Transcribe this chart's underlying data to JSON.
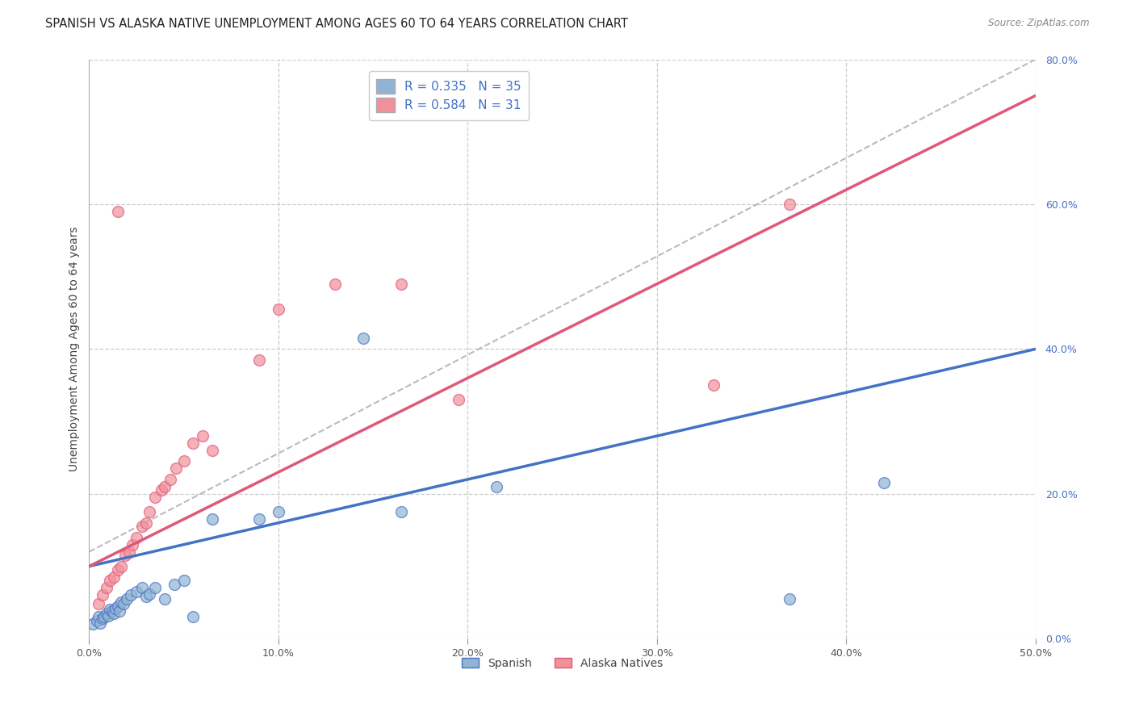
{
  "title": "SPANISH VS ALASKA NATIVE UNEMPLOYMENT AMONG AGES 60 TO 64 YEARS CORRELATION CHART",
  "source": "Source: ZipAtlas.com",
  "ylabel": "Unemployment Among Ages 60 to 64 years",
  "xlim": [
    0.0,
    0.5
  ],
  "ylim": [
    0.0,
    0.8
  ],
  "xtick_labels": [
    "0.0%",
    "10.0%",
    "20.0%",
    "30.0%",
    "40.0%",
    "50.0%"
  ],
  "ytick_labels": [
    "0.0%",
    "20.0%",
    "40.0%",
    "60.0%",
    "80.0%"
  ],
  "spanish_R": 0.335,
  "spanish_N": 35,
  "alaska_R": 0.584,
  "alaska_N": 31,
  "spanish_color": "#92b4d4",
  "alaska_color": "#f0909a",
  "spanish_line_color": "#4472c4",
  "alaska_line_color": "#e05878",
  "ref_line_color": "#bbbbbb",
  "background_color": "#ffffff",
  "grid_color": "#cccccc",
  "spanish_line_intercept": 0.1,
  "spanish_line_slope": 0.6,
  "alaska_line_intercept": 0.1,
  "alaska_line_slope": 1.3,
  "ref_line_x0": 0.0,
  "ref_line_y0": 0.12,
  "ref_line_x1": 0.5,
  "ref_line_y1": 0.8,
  "spanish_x": [
    0.002,
    0.004,
    0.005,
    0.006,
    0.007,
    0.008,
    0.009,
    0.01,
    0.011,
    0.012,
    0.013,
    0.014,
    0.015,
    0.016,
    0.017,
    0.018,
    0.02,
    0.022,
    0.025,
    0.028,
    0.03,
    0.032,
    0.035,
    0.04,
    0.045,
    0.05,
    0.055,
    0.065,
    0.09,
    0.1,
    0.145,
    0.165,
    0.215,
    0.37,
    0.42
  ],
  "spanish_y": [
    0.02,
    0.025,
    0.03,
    0.022,
    0.028,
    0.03,
    0.035,
    0.032,
    0.04,
    0.038,
    0.035,
    0.042,
    0.045,
    0.038,
    0.05,
    0.048,
    0.055,
    0.06,
    0.065,
    0.07,
    0.058,
    0.062,
    0.07,
    0.055,
    0.075,
    0.08,
    0.03,
    0.165,
    0.165,
    0.175,
    0.415,
    0.175,
    0.21,
    0.055,
    0.215
  ],
  "alaska_x": [
    0.005,
    0.007,
    0.009,
    0.011,
    0.013,
    0.015,
    0.017,
    0.019,
    0.021,
    0.023,
    0.025,
    0.028,
    0.03,
    0.032,
    0.035,
    0.038,
    0.04,
    0.043,
    0.046,
    0.05,
    0.055,
    0.06,
    0.065,
    0.09,
    0.1,
    0.13,
    0.165,
    0.195,
    0.33,
    0.37,
    0.015
  ],
  "alaska_y": [
    0.048,
    0.06,
    0.07,
    0.08,
    0.085,
    0.095,
    0.1,
    0.115,
    0.12,
    0.13,
    0.14,
    0.155,
    0.16,
    0.175,
    0.195,
    0.205,
    0.21,
    0.22,
    0.235,
    0.245,
    0.27,
    0.28,
    0.26,
    0.385,
    0.455,
    0.49,
    0.49,
    0.33,
    0.35,
    0.6,
    0.59
  ]
}
